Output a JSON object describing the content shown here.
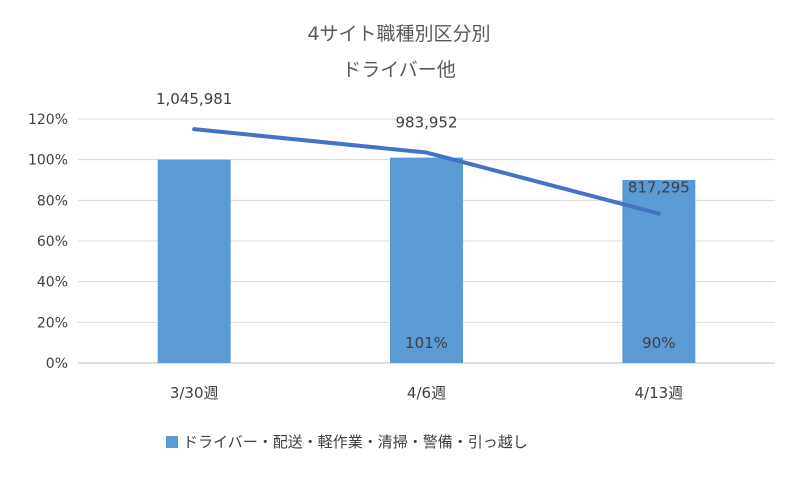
{
  "chart_data": {
    "type": "bar",
    "title": "4サイト職種別区分別",
    "subtitle": "ドライバー他",
    "categories": [
      "3/30週",
      "4/6週",
      "4/13週"
    ],
    "ylim": [
      0,
      120
    ],
    "yticks": [
      0,
      20,
      40,
      60,
      80,
      100,
      120
    ],
    "ytick_labels": [
      "0%",
      "20%",
      "40%",
      "60%",
      "80%",
      "100%",
      "120%"
    ],
    "grid": true,
    "legend_position": "bottom",
    "series": [
      {
        "name": "ドライバー・配送・軽作業・清掃・警備・引っ越し",
        "kind": "bar",
        "color": "#5B9BD5",
        "values": [
          100,
          101,
          90
        ],
        "labels": [
          "",
          "101%",
          "90%"
        ]
      },
      {
        "kind": "line",
        "color": "#4472C4",
        "values": [
          115,
          103.5,
          73.5
        ],
        "labels": [
          "1,045,981",
          "983,952",
          "817,295"
        ]
      }
    ]
  }
}
